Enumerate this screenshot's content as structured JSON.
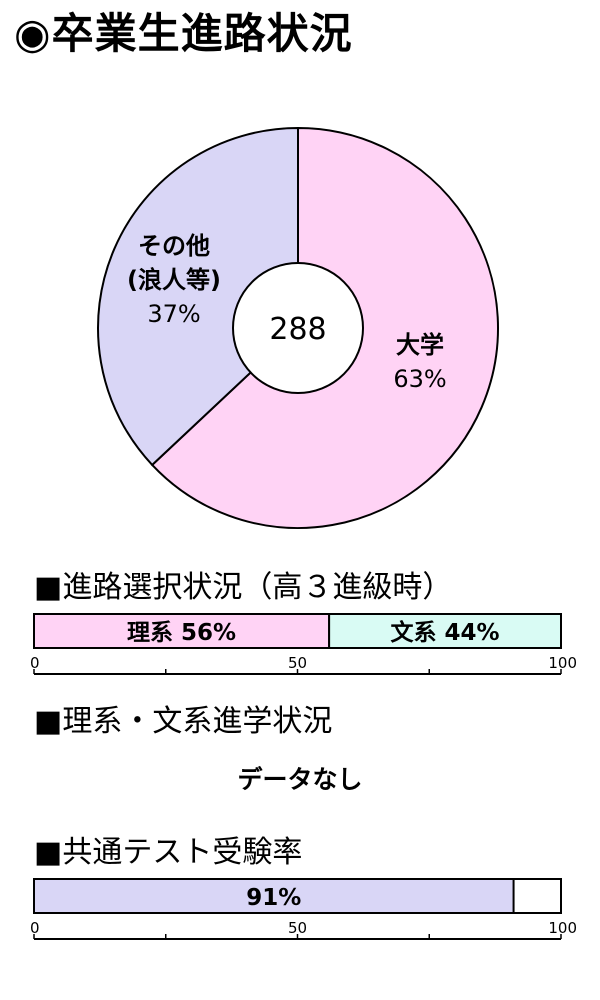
{
  "title": "◉卒業生進路状況",
  "donut": {
    "center_label": "288",
    "colors": {
      "daigaku": "#ffd3f5",
      "sonota": "#d9d6f6",
      "stroke": "#000000"
    }
  },
  "section_course": {
    "title": "■進路選択状況（高３進級時）"
  },
  "section_status": {
    "title": "■理系・文系進学状況",
    "no_data": "データなし"
  },
  "section_kyotsu": {
    "title": "■共通テスト受験率"
  },
  "chart_data": [
    {
      "type": "pie",
      "title": "",
      "center_label": "288",
      "slices": [
        {
          "label": "大学",
          "value": 63,
          "display": "63%"
        },
        {
          "label": "その他\n(浪人等)",
          "value": 37,
          "display": "37%"
        }
      ]
    },
    {
      "type": "bar",
      "orientation": "horizontal-stacked",
      "title": "■進路選択状況（高３進級時）",
      "xlim": [
        0,
        100
      ],
      "ticks": [
        0,
        50,
        100
      ],
      "segments": [
        {
          "label": "理系 56%",
          "value": 56,
          "color": "#ffd3f5"
        },
        {
          "label": "文系 44%",
          "value": 44,
          "color": "#d9fbf4"
        }
      ]
    },
    {
      "type": "bar",
      "orientation": "horizontal",
      "title": "■共通テスト受験率",
      "xlim": [
        0,
        100
      ],
      "ticks": [
        0,
        50,
        100
      ],
      "segments": [
        {
          "label": "91%",
          "value": 91,
          "color": "#d9d6f6"
        }
      ]
    }
  ]
}
